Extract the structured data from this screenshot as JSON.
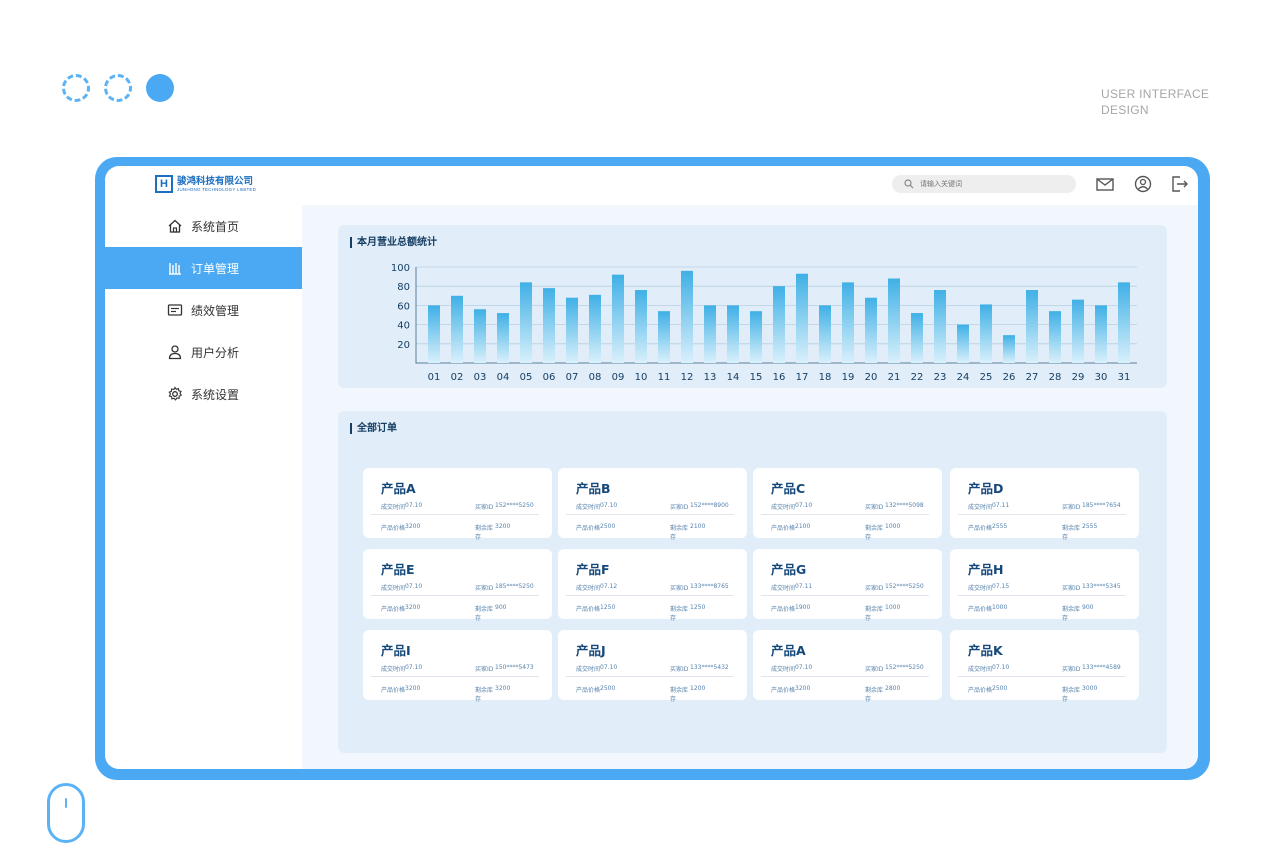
{
  "caption": {
    "line1": "USER INTERFACE",
    "line2": "DESIGN"
  },
  "header": {
    "logo_cn": "骏鸿科技有限公司",
    "logo_en": "JUNHONG TECHNOLOGY LIMITED",
    "search_placeholder": "请输入关键词",
    "icons": [
      "mail-icon",
      "user-icon",
      "logout-icon"
    ]
  },
  "sidebar": {
    "items": [
      {
        "label": "系统首页",
        "icon": "home-icon",
        "active": false
      },
      {
        "label": "订单管理",
        "icon": "order-icon",
        "active": true
      },
      {
        "label": "绩效管理",
        "icon": "performance-icon",
        "active": false
      },
      {
        "label": "用户分析",
        "icon": "user-analysis-icon",
        "active": false
      },
      {
        "label": "系统设置",
        "icon": "settings-icon",
        "active": false
      }
    ]
  },
  "chart_section": {
    "title": "本月营业总额统计"
  },
  "chart_data": {
    "type": "bar",
    "categories": [
      "01",
      "02",
      "03",
      "04",
      "05",
      "06",
      "07",
      "08",
      "09",
      "10",
      "11",
      "12",
      "13",
      "14",
      "15",
      "16",
      "17",
      "18",
      "19",
      "20",
      "21",
      "22",
      "23",
      "24",
      "25",
      "26",
      "27",
      "28",
      "29",
      "30",
      "31"
    ],
    "values": [
      60,
      70,
      56,
      52,
      84,
      78,
      68,
      71,
      92,
      76,
      54,
      96,
      60,
      60,
      54,
      80,
      93,
      60,
      84,
      68,
      88,
      52,
      76,
      40,
      61,
      29,
      76,
      54,
      66,
      60,
      84
    ],
    "ylim": [
      0,
      100
    ],
    "yticks": [
      20,
      40,
      60,
      80,
      100
    ],
    "grid": true,
    "bar_color_top": "#3fb0e6",
    "bar_color_bottom": "#d9f0fb"
  },
  "orders_section": {
    "title": "全部订单"
  },
  "order_labels": {
    "time": "成交时间",
    "buyer": "买家ID",
    "price": "产品价格",
    "stock": "剩余库存"
  },
  "orders": [
    {
      "name": "产品A",
      "time": "07.10",
      "buyer": "152****5250",
      "price": "3200",
      "stock": "3200"
    },
    {
      "name": "产品B",
      "time": "07.10",
      "buyer": "152****8900",
      "price": "2500",
      "stock": "2100"
    },
    {
      "name": "产品C",
      "time": "07.10",
      "buyer": "132****5098",
      "price": "2100",
      "stock": "1000"
    },
    {
      "name": "产品D",
      "time": "07.11",
      "buyer": "185****7654",
      "price": "2555",
      "stock": "2555"
    },
    {
      "name": "产品E",
      "time": "07.10",
      "buyer": "185****5250",
      "price": "3200",
      "stock": "900"
    },
    {
      "name": "产品F",
      "time": "07.12",
      "buyer": "133****8765",
      "price": "1250",
      "stock": "1250"
    },
    {
      "name": "产品G",
      "time": "07.11",
      "buyer": "152****5250",
      "price": "1900",
      "stock": "1000"
    },
    {
      "name": "产品H",
      "time": "07.15",
      "buyer": "133****5345",
      "price": "1000",
      "stock": "900"
    },
    {
      "name": "产品I",
      "time": "07.10",
      "buyer": "150****5473",
      "price": "3200",
      "stock": "3200"
    },
    {
      "name": "产品J",
      "time": "07.10",
      "buyer": "133****5432",
      "price": "2500",
      "stock": "1200"
    },
    {
      "name": "产品A",
      "time": "07.10",
      "buyer": "152****5250",
      "price": "3200",
      "stock": "2800"
    },
    {
      "name": "产品K",
      "time": "07.10",
      "buyer": "133****4589",
      "price": "2500",
      "stock": "3000"
    }
  ],
  "colors": {
    "primary": "#4aa9f2",
    "title": "#163e63",
    "product": "#15487a"
  }
}
